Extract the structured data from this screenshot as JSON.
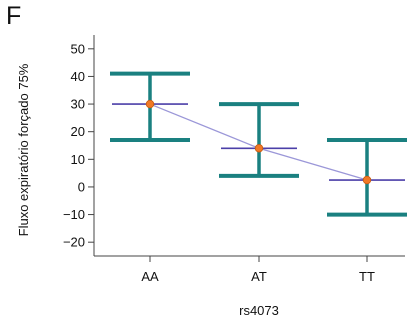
{
  "panel_label": "F",
  "chart_data": {
    "type": "scatter",
    "categories": [
      "AA",
      "AT",
      "TT"
    ],
    "series": [
      {
        "values": [
          30,
          14,
          2.5
        ],
        "upper": [
          41,
          30,
          17
        ],
        "lower": [
          17,
          4,
          -10
        ]
      }
    ],
    "xlabel": "rs4073",
    "ylabel": "Fluxo expiratório forçado 75%",
    "ylim": [
      -25,
      55
    ],
    "yticks": [
      -20,
      -10,
      0,
      10,
      20,
      30,
      40,
      50
    ],
    "grid": false,
    "colors": {
      "error_bar": "#1a8080",
      "mean_line": "#4b3fa8",
      "connector": "#9b97d8",
      "point": "#f07826",
      "axis": "#444444"
    }
  }
}
